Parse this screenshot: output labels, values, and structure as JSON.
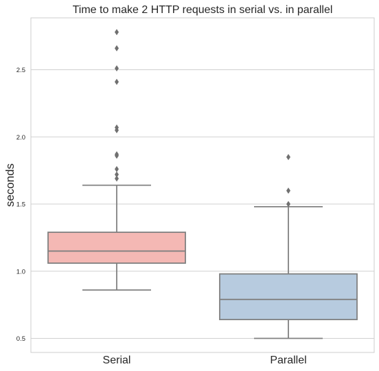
{
  "chart_data": {
    "type": "box",
    "title": "Time to make 2 HTTP requests in serial vs. in parallel",
    "xlabel": "",
    "ylabel": "seconds",
    "ylim": [
      0.4,
      2.9
    ],
    "yticks": [
      "0.5",
      "1.0",
      "1.5",
      "2.0",
      "2.5"
    ],
    "grid": true,
    "categories": [
      "Serial",
      "Parallel"
    ],
    "boxes": [
      {
        "category": "Serial",
        "color": "#f4b8b4",
        "whisker_low": 0.86,
        "q1": 1.06,
        "median": 1.15,
        "q3": 1.29,
        "whisker_high": 1.64,
        "outliers": [
          1.69,
          1.72,
          1.76,
          1.86,
          1.87,
          2.05,
          2.07,
          2.41,
          2.51,
          2.66,
          2.78
        ]
      },
      {
        "category": "Parallel",
        "color": "#b7cbdf",
        "whisker_low": 0.5,
        "q1": 0.64,
        "median": 0.79,
        "q3": 0.98,
        "whisker_high": 1.48,
        "outliers": [
          1.5,
          1.6,
          1.85
        ]
      }
    ]
  }
}
